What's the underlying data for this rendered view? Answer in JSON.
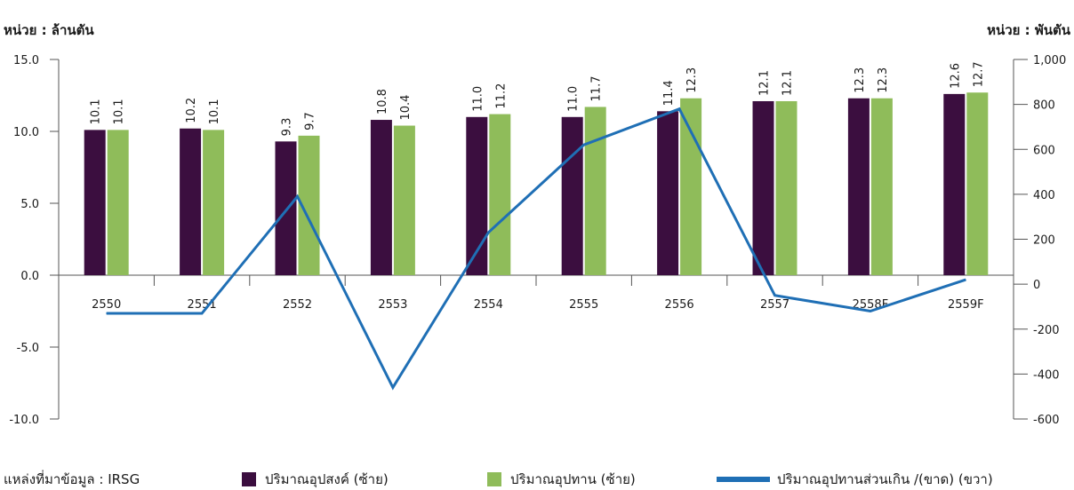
{
  "units": {
    "left": "หน่วย : ล้านตัน",
    "right": "หน่วย : พันตัน"
  },
  "source": "แหล่งที่มาข้อมูล : IRSG",
  "legend": {
    "demand": "ปริมาณอุปสงค์ (ซ้าย)",
    "supply": "ปริมาณอุปทาน (ซ้าย)",
    "surplus": "ปริมาณอุปทานส่วนเกิน /(ขาด) (ขวา)"
  },
  "colors": {
    "demand": "#3b0e3f",
    "supply": "#8fbc5a",
    "surplus": "#1f6fb5",
    "axis": "#555555"
  },
  "chart_data": {
    "type": "bar",
    "categories": [
      "2550",
      "2551",
      "2552",
      "2553",
      "2554",
      "2555",
      "2556",
      "2557",
      "2558F",
      "2559F"
    ],
    "series": [
      {
        "name": "ปริมาณอุปสงค์ (ซ้าย)",
        "axis": "left",
        "kind": "bar",
        "values": [
          10.1,
          10.2,
          9.3,
          10.8,
          11.0,
          11.0,
          11.4,
          12.1,
          12.3,
          12.6
        ],
        "labels": [
          "10.1",
          "10.2",
          "9.3",
          "10.8",
          "11.0",
          "11.0",
          "11.4",
          "12.1",
          "12.3",
          "12.6"
        ]
      },
      {
        "name": "ปริมาณอุปทาน (ซ้าย)",
        "axis": "left",
        "kind": "bar",
        "values": [
          10.1,
          10.1,
          9.7,
          10.4,
          11.2,
          11.7,
          12.3,
          12.1,
          12.3,
          12.7
        ],
        "labels": [
          "10.1",
          "10.1",
          "9.7",
          "10.4",
          "11.2",
          "11.7",
          "12.3",
          "12.1",
          "12.3",
          "12.7"
        ]
      },
      {
        "name": "ปริมาณอุปทานส่วนเกิน /(ขาด) (ขวา)",
        "axis": "right",
        "kind": "line",
        "values": [
          -130,
          -130,
          390,
          -460,
          230,
          620,
          780,
          -50,
          -120,
          20
        ]
      }
    ],
    "y_left": {
      "lim": [
        -10,
        15
      ],
      "ticks": [
        15,
        10,
        5,
        0,
        -5,
        -10
      ],
      "tick_labels": [
        "15.0",
        "10.0",
        "5.0",
        "0.0",
        "-5.0",
        "-10.0"
      ]
    },
    "y_right": {
      "lim": [
        -600,
        1000
      ],
      "ticks": [
        1000,
        800,
        600,
        400,
        200,
        0,
        -200,
        -400,
        -600
      ],
      "tick_labels": [
        "1,000",
        "800",
        "600",
        "400",
        "200",
        "0",
        "-200",
        "-400",
        "-600"
      ]
    },
    "grid": false,
    "legend_position": "bottom"
  }
}
